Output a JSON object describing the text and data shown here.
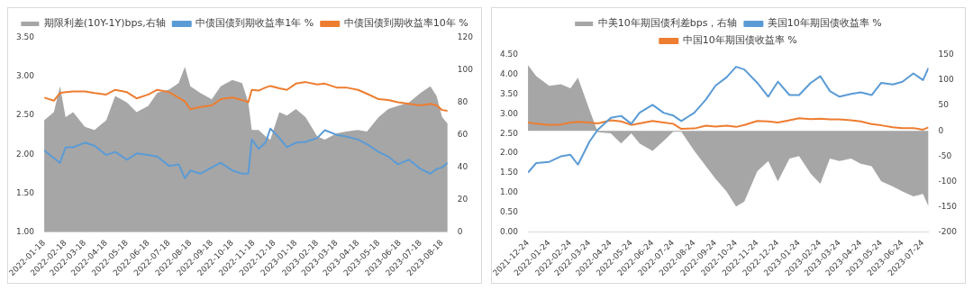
{
  "chart_data": [
    {
      "type": "line",
      "legend": "top",
      "grid": false,
      "xlim": [
        "2022-01-18",
        "2023-08-26"
      ],
      "xticks": [
        "2022-01-18",
        "2022-02-18",
        "2022-03-18",
        "2022-04-18",
        "2022-05-18",
        "2022-06-18",
        "2022-07-18",
        "2022-08-18",
        "2022-09-18",
        "2022-10-18",
        "2022-11-18",
        "2022-12-18",
        "2023-01-18",
        "2023-02-18",
        "2023-03-18",
        "2023-04-18",
        "2023-05-18",
        "2023-06-18",
        "2023-07-18",
        "2023-08-18"
      ],
      "ylim": [
        1.0,
        3.5
      ],
      "yticks": [
        {
          "value": 1,
          "label": "1.00"
        },
        {
          "value": 1.5,
          "label": "1.50"
        },
        {
          "value": 2,
          "label": "2.00"
        },
        {
          "value": 2.5,
          "label": "2.50"
        },
        {
          "value": 3,
          "label": "3.00"
        },
        {
          "value": 3.5,
          "label": "3.50"
        }
      ],
      "y2lim": [
        0,
        120
      ],
      "y2ticks": [
        0,
        20,
        40,
        60,
        80,
        100,
        120
      ],
      "x": [
        "2022-01-18",
        "2022-02-01",
        "2022-02-10",
        "2022-02-18",
        "2022-03-01",
        "2022-03-18",
        "2022-04-01",
        "2022-04-18",
        "2022-05-01",
        "2022-05-18",
        "2022-06-01",
        "2022-06-18",
        "2022-07-01",
        "2022-07-18",
        "2022-08-01",
        "2022-08-10",
        "2022-08-18",
        "2022-09-01",
        "2022-09-18",
        "2022-10-01",
        "2022-10-18",
        "2022-11-01",
        "2022-11-10",
        "2022-11-15",
        "2022-11-25",
        "2022-12-05",
        "2022-12-12",
        "2022-12-25",
        "2023-01-05",
        "2023-01-18",
        "2023-02-01",
        "2023-02-18",
        "2023-03-01",
        "2023-03-18",
        "2023-04-01",
        "2023-04-18",
        "2023-05-01",
        "2023-05-18",
        "2023-06-01",
        "2023-06-15",
        "2023-07-01",
        "2023-07-18",
        "2023-08-01",
        "2023-08-10",
        "2023-08-18",
        "2023-08-26"
      ],
      "series": [
        {
          "name": "期限利差(10Y-1Y)bps,右轴",
          "type": "area",
          "axis": "y2",
          "color": "#a6a6a6",
          "values": [
            69,
            74,
            90,
            71,
            74,
            65,
            63,
            69,
            84,
            80,
            74,
            78,
            86,
            88,
            92,
            102,
            90,
            86,
            82,
            90,
            94,
            92,
            80,
            63,
            63,
            59,
            57,
            74,
            72,
            76,
            71,
            59,
            57,
            61,
            62,
            63,
            62,
            71,
            76,
            78,
            80,
            86,
            90,
            84,
            71,
            67
          ]
        },
        {
          "name": "中债国债到期收益率1年 %",
          "type": "line",
          "color": "#5b9bd5",
          "values": [
            2.05,
            1.95,
            1.89,
            2.09,
            2.09,
            2.15,
            2.11,
            1.99,
            2.03,
            1.93,
            2.01,
            1.99,
            1.97,
            1.85,
            1.87,
            1.69,
            1.79,
            1.75,
            1.83,
            1.89,
            1.79,
            1.75,
            1.75,
            2.19,
            2.07,
            2.15,
            2.33,
            2.21,
            2.09,
            2.15,
            2.16,
            2.21,
            2.31,
            2.25,
            2.23,
            2.19,
            2.13,
            2.03,
            1.97,
            1.87,
            1.93,
            1.81,
            1.75,
            1.81,
            1.83,
            1.89
          ]
        },
        {
          "name": "中债国债到期收益率10年 %",
          "type": "line",
          "color": "#ed7d31",
          "values": [
            2.73,
            2.69,
            2.79,
            2.8,
            2.81,
            2.81,
            2.79,
            2.77,
            2.83,
            2.8,
            2.72,
            2.77,
            2.83,
            2.8,
            2.73,
            2.68,
            2.58,
            2.61,
            2.63,
            2.71,
            2.73,
            2.7,
            2.67,
            2.83,
            2.82,
            2.86,
            2.88,
            2.85,
            2.83,
            2.91,
            2.93,
            2.9,
            2.91,
            2.86,
            2.86,
            2.83,
            2.78,
            2.71,
            2.7,
            2.67,
            2.65,
            2.63,
            2.65,
            2.63,
            2.57,
            2.56
          ]
        }
      ]
    },
    {
      "type": "line",
      "legend": "top",
      "grid": false,
      "xlim": [
        "2021-12-24",
        "2023-08-01"
      ],
      "xticks": [
        "2021-12-24",
        "2022-01-24",
        "2022-02-24",
        "2022-03-24",
        "2022-04-24",
        "2022-05-24",
        "2022-06-24",
        "2022-07-24",
        "2022-08-24",
        "2022-09-24",
        "2022-10-24",
        "2022-11-24",
        "2022-12-24",
        "2023-01-24",
        "2023-02-24",
        "2023-03-24",
        "2023-04-24",
        "2023-05-24",
        "2023-06-24",
        "2023-07-24"
      ],
      "ylim": [
        0,
        4.5
      ],
      "yticks": [
        {
          "value": 0,
          "label": "0.00"
        },
        {
          "value": 0.5,
          "label": "0.50"
        },
        {
          "value": 1,
          "label": "1.00"
        },
        {
          "value": 1.5,
          "label": "1.50"
        },
        {
          "value": 2,
          "label": "2.00"
        },
        {
          "value": 2.5,
          "label": "2.50"
        },
        {
          "value": 3,
          "label": "3.00"
        },
        {
          "value": 3.5,
          "label": "3.50"
        },
        {
          "value": 4,
          "label": "4.00"
        },
        {
          "value": 4.5,
          "label": "4.50"
        }
      ],
      "y2lim": [
        -200,
        150
      ],
      "y2ticks": [
        -200,
        -150,
        -100,
        -50,
        0,
        50,
        100,
        150
      ],
      "x": [
        "2021-12-24",
        "2022-01-05",
        "2022-01-24",
        "2022-02-10",
        "2022-02-24",
        "2022-03-07",
        "2022-03-24",
        "2022-04-05",
        "2022-04-24",
        "2022-05-09",
        "2022-05-24",
        "2022-06-05",
        "2022-06-24",
        "2022-07-10",
        "2022-07-24",
        "2022-08-05",
        "2022-08-24",
        "2022-09-10",
        "2022-09-24",
        "2022-10-10",
        "2022-10-24",
        "2022-11-05",
        "2022-11-24",
        "2022-12-10",
        "2022-12-24",
        "2023-01-10",
        "2023-01-24",
        "2023-02-10",
        "2023-02-24",
        "2023-03-10",
        "2023-03-24",
        "2023-04-10",
        "2023-04-24",
        "2023-05-10",
        "2023-05-24",
        "2023-06-10",
        "2023-06-24",
        "2023-07-10",
        "2023-07-24",
        "2023-08-01"
      ],
      "series": [
        {
          "name": "中美10年期国债利差bps，右轴",
          "type": "area",
          "axis": "y2",
          "color": "#a6a6a6",
          "values": [
            130,
            108,
            89,
            92,
            84,
            105,
            41,
            -3,
            -5,
            -25,
            -5,
            -25,
            -40,
            -20,
            -2,
            -2,
            -40,
            -70,
            -95,
            -120,
            -150,
            -140,
            -80,
            -60,
            -100,
            -55,
            -50,
            -85,
            -105,
            -55,
            -60,
            -55,
            -65,
            -70,
            -100,
            -110,
            -120,
            -130,
            -125,
            -150
          ]
        },
        {
          "name": "美国10年期国债收益率 %",
          "type": "line",
          "color": "#5b9bd5",
          "values": [
            1.51,
            1.75,
            1.78,
            1.92,
            1.96,
            1.71,
            2.3,
            2.6,
            2.9,
            2.95,
            2.75,
            3.03,
            3.23,
            3.03,
            2.96,
            2.82,
            3.03,
            3.37,
            3.72,
            3.93,
            4.2,
            4.13,
            3.79,
            3.44,
            3.82,
            3.48,
            3.48,
            3.79,
            3.96,
            3.58,
            3.44,
            3.51,
            3.55,
            3.48,
            3.79,
            3.75,
            3.82,
            4.03,
            3.86,
            4.17
          ]
        },
        {
          "name": "中国10年期国债收益率 %",
          "type": "line",
          "color": "#ed7d31",
          "values": [
            2.78,
            2.75,
            2.72,
            2.73,
            2.78,
            2.8,
            2.78,
            2.76,
            2.84,
            2.81,
            2.72,
            2.76,
            2.82,
            2.78,
            2.75,
            2.62,
            2.63,
            2.7,
            2.68,
            2.7,
            2.67,
            2.72,
            2.82,
            2.81,
            2.78,
            2.84,
            2.89,
            2.87,
            2.88,
            2.86,
            2.86,
            2.84,
            2.81,
            2.74,
            2.71,
            2.66,
            2.64,
            2.64,
            2.6,
            2.66
          ]
        }
      ]
    }
  ]
}
